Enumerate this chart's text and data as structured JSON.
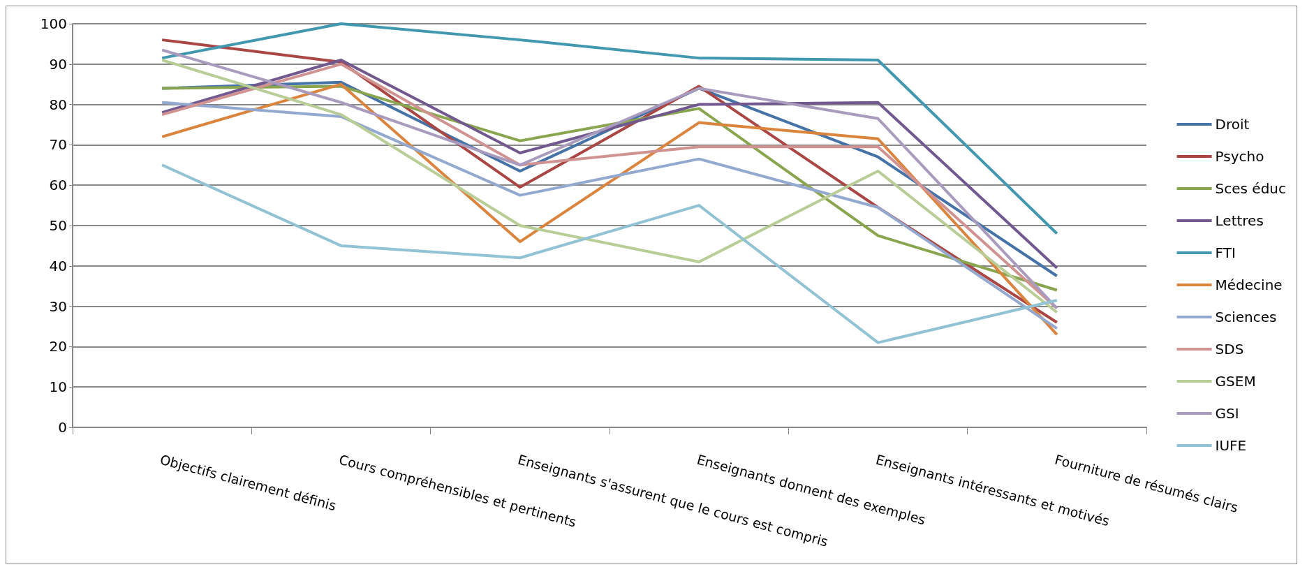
{
  "chart_data": {
    "type": "line",
    "categories": [
      "Objectifs clairement définis",
      "Cours compréhensibles et pertinents",
      "Enseignants s'assurent que le cours est compris",
      "Enseignants donnent des exemples",
      "Enseignants intéressants et motivés",
      "Fourniture de résumés clairs"
    ],
    "ylim": [
      0,
      100
    ],
    "yticks": [
      0,
      10,
      20,
      30,
      40,
      50,
      60,
      70,
      80,
      90,
      100
    ],
    "grid": "y",
    "legend": "right",
    "marker": "none",
    "line_style": "solid",
    "series": [
      {
        "name": "Droit",
        "color": "#4572a7",
        "values": [
          84,
          85.5,
          63.5,
          84,
          67,
          37.5
        ]
      },
      {
        "name": "Psycho",
        "color": "#aa4643",
        "values": [
          96,
          90.5,
          59.5,
          84.5,
          54.5,
          26
        ]
      },
      {
        "name": "Sces éduc",
        "color": "#89a54e",
        "values": [
          84,
          84.5,
          71,
          79,
          47.5,
          34
        ]
      },
      {
        "name": "Lettres",
        "color": "#71588f",
        "values": [
          78,
          91,
          68,
          80,
          80.5,
          39.5
        ]
      },
      {
        "name": "FTI",
        "color": "#4198af",
        "values": [
          91.5,
          100,
          96,
          91.5,
          91,
          48
        ]
      },
      {
        "name": "Médecine",
        "color": "#db843d",
        "values": [
          72,
          85,
          46,
          75.5,
          71.5,
          23
        ]
      },
      {
        "name": "Sciences",
        "color": "#93a9cf",
        "values": [
          80.5,
          77,
          57.5,
          66.5,
          54.5,
          24.5
        ]
      },
      {
        "name": "SDS",
        "color": "#d19392",
        "values": [
          77.5,
          90,
          65,
          69.5,
          69.5,
          29.5
        ]
      },
      {
        "name": "GSEM",
        "color": "#b9cd96",
        "values": [
          91,
          77.5,
          50,
          41,
          63.5,
          28.5
        ]
      },
      {
        "name": "GSI",
        "color": "#a99bbd",
        "values": [
          93.5,
          80.5,
          65,
          84,
          76.5,
          29.5
        ]
      },
      {
        "name": "IUFE",
        "color": "#92c3d4",
        "values": [
          65,
          45,
          42,
          55,
          21,
          31.5
        ]
      }
    ]
  }
}
